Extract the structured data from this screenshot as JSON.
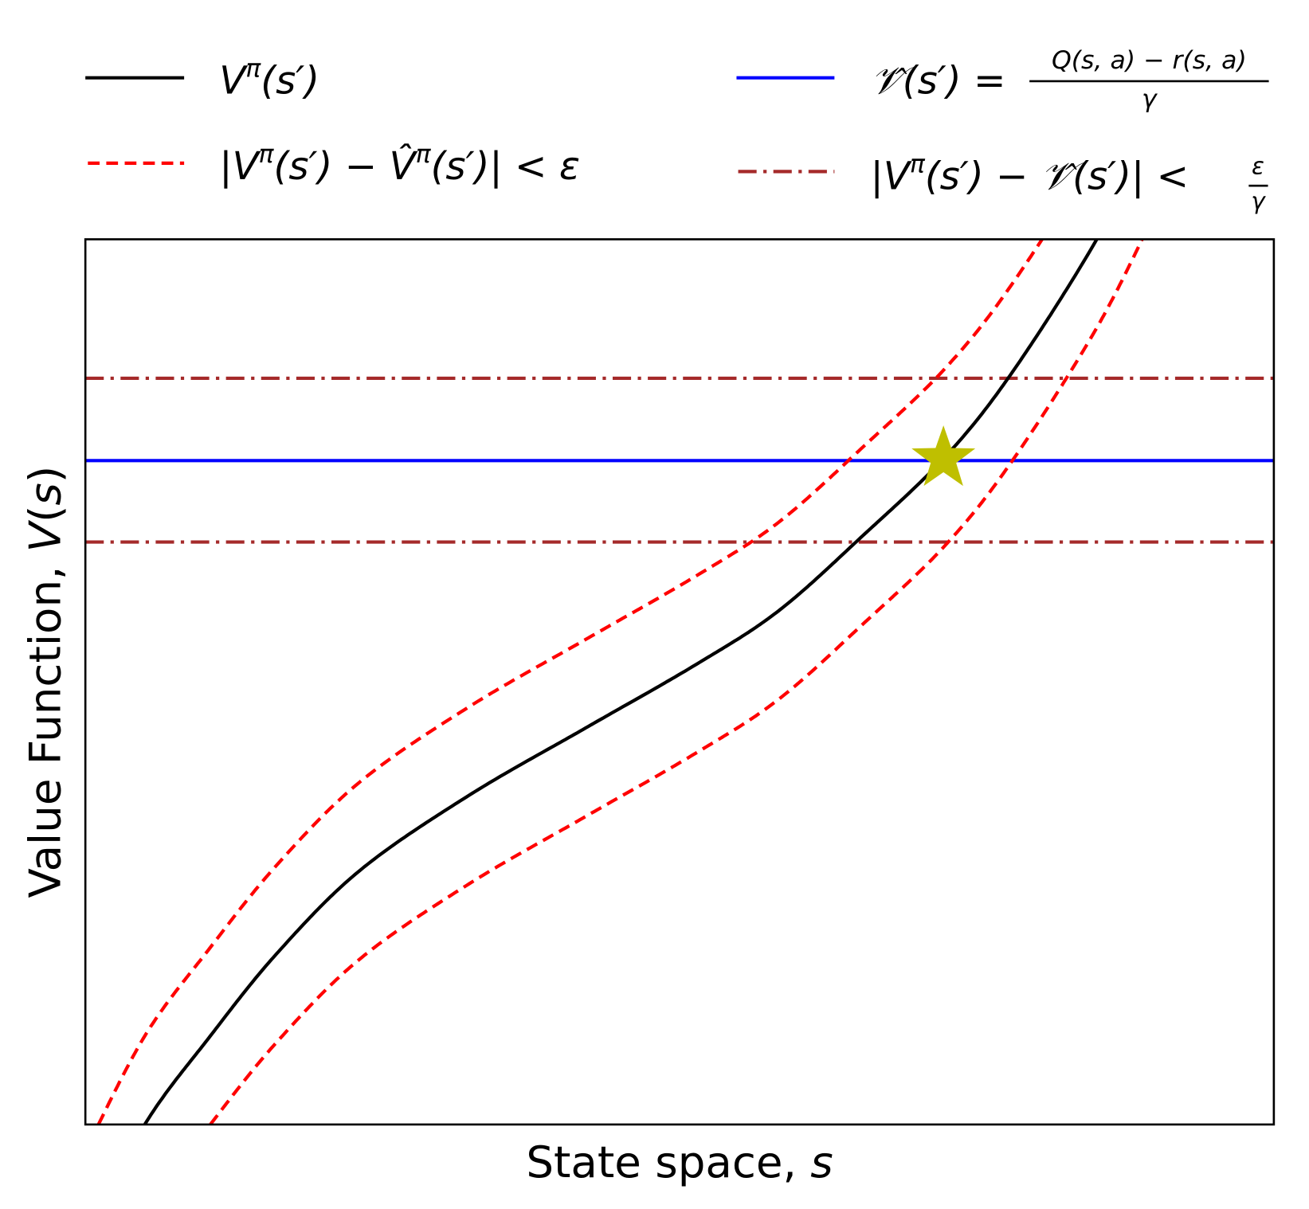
{
  "chart_data": {
    "type": "line",
    "xlabel": {
      "text": "State space, ",
      "var": "s"
    },
    "ylabel": {
      "text": "Value Function, ",
      "var": "V",
      "paren_open": "(",
      "arg": "s",
      "paren_close": ")"
    },
    "xlim": [
      0,
      1
    ],
    "ylim": [
      0,
      1
    ],
    "grid": false,
    "ticks": false,
    "legend_placement": "top, above plot, 2 columns",
    "series": [
      {
        "key": "v_pi",
        "legend": {
          "a": "V",
          "sup": "π",
          "b": "(s′)"
        },
        "color": "#000000",
        "style": "solid",
        "s": [
          0.0,
          0.05,
          0.104,
          0.161,
          0.231,
          0.323,
          0.421,
          0.513,
          0.583,
          0.654,
          0.724,
          0.78,
          0.851,
          0.9
        ],
        "v": [
          -0.13,
          0.0,
          0.098,
          0.193,
          0.287,
          0.372,
          0.448,
          0.519,
          0.58,
          0.665,
          0.755,
          0.85,
          1.0,
          1.13
        ]
      },
      {
        "key": "v_hat_band",
        "legend": {
          "a": "|V",
          "sup": "π",
          "b": "(s′) − V̂",
          "sup2": "π",
          "c": "(s′)| < ε"
        },
        "color": "#ff0000",
        "style": "dashed",
        "offset": 0.1
      },
      {
        "key": "script_v_hat",
        "legend": {
          "a": "𝒱̂(s′) = ",
          "num": "Q(s, a) − r(s, a)",
          "den": "γ"
        },
        "color": "#0000ff",
        "style": "solid",
        "value": 0.75
      },
      {
        "key": "script_v_band",
        "legend": {
          "a": "|V",
          "sup": "π",
          "b": "(s′) − 𝒱̂(s′)| < ",
          "num": "ε",
          "den": "γ"
        },
        "color": "#a52a2a",
        "style": "dashdot",
        "values": [
          0.843,
          0.658
        ]
      }
    ],
    "marker": {
      "shape": "star",
      "color": "#bfbf00",
      "s": 0.722,
      "v": 0.752
    }
  }
}
